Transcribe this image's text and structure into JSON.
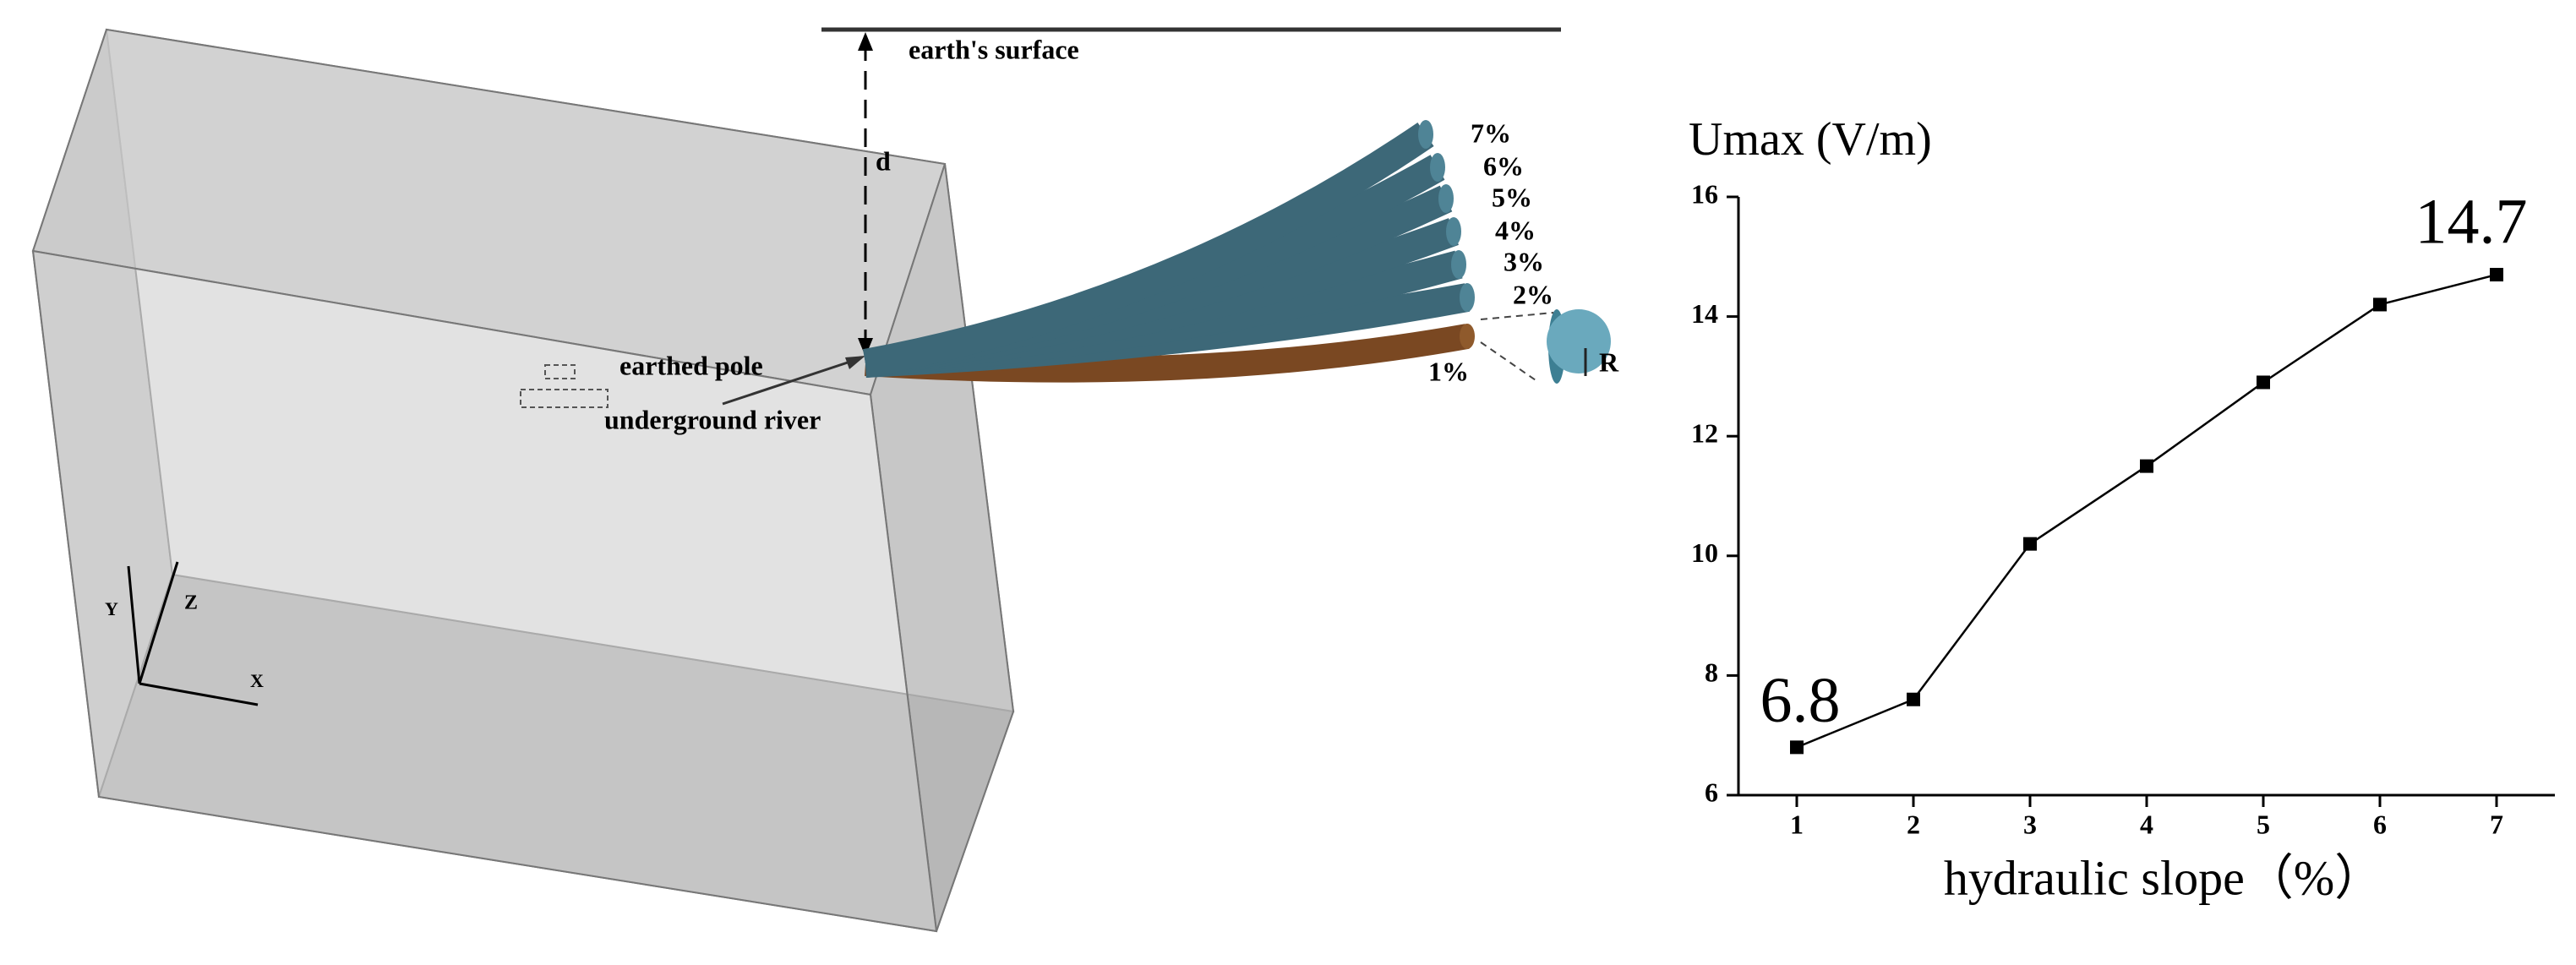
{
  "diagram": {
    "surface_label": "earth's surface",
    "depth_label": "d",
    "pole_label": "earthed pole",
    "river_label": "underground river",
    "axis_y": "Y",
    "axis_z": "Z",
    "axis_x": "X",
    "slope_labels": [
      "7%",
      "6%",
      "5%",
      "4%",
      "3%",
      "2%",
      "1%"
    ],
    "radius_label": "R"
  },
  "chart_data": {
    "type": "line",
    "y_label": "Umax (V/m)",
    "x_label": "hydraulic slope（%）",
    "x": [
      1,
      2,
      3,
      4,
      5,
      6,
      7
    ],
    "values": [
      6.8,
      7.6,
      10.2,
      11.5,
      12.9,
      14.2,
      14.7
    ],
    "value_labels": [
      "6.8",
      null,
      null,
      null,
      null,
      null,
      "14.7"
    ],
    "color": "#000000",
    "xlim": [
      0.5,
      7.5
    ],
    "xticks": [
      1,
      2,
      3,
      4,
      5,
      6,
      7
    ],
    "ylim": [
      6,
      16
    ],
    "yticks": [
      6,
      8,
      10,
      12,
      14,
      16
    ]
  }
}
